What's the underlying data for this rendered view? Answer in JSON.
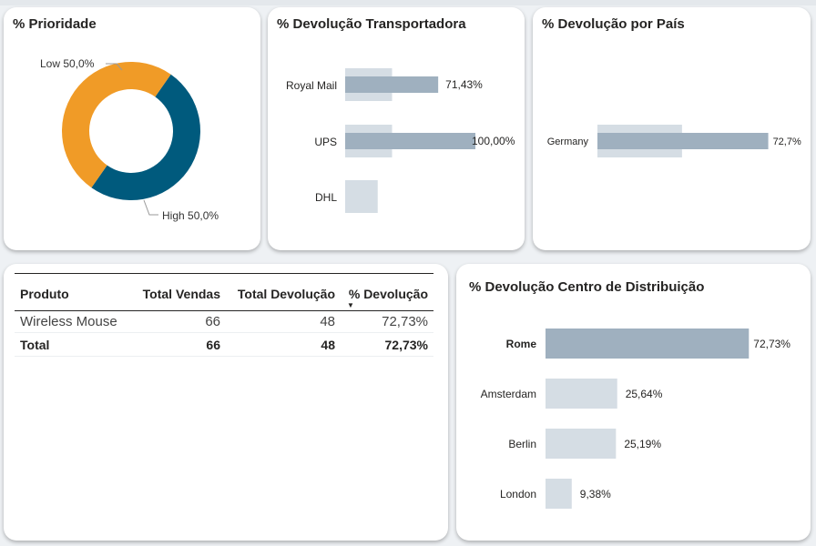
{
  "priority_card": {
    "title": "% Prioridade",
    "low_label": "Low 50,0%",
    "high_label": "High 50,0%"
  },
  "carrier_card": {
    "title": "% Devolução Transportadora"
  },
  "country_card": {
    "title": "% Devolução por País"
  },
  "dc_card": {
    "title": "% Devolução Centro de Distribuição"
  },
  "table": {
    "headers": [
      "Produto",
      "Total Vendas",
      "Total Devolução",
      "% Devolução"
    ],
    "sort_indicator": "▼",
    "rows": [
      {
        "produto": "Wireless Mouse",
        "vendas": "66",
        "devolucao": "48",
        "pct": "72,73%"
      }
    ],
    "total": {
      "produto": "Total",
      "vendas": "66",
      "devolucao": "48",
      "pct": "72,73%"
    }
  },
  "colors": {
    "orange": "#f09b27",
    "teal": "#005a7d",
    "bar_selected": "#9fb0bf",
    "bar_background": "#d5dde4"
  },
  "chart_data": [
    {
      "type": "pie",
      "title": "% Prioridade",
      "categories": [
        "Low",
        "High"
      ],
      "values": [
        50.0,
        50.0
      ],
      "data_labels": [
        "Low 50,0%",
        "High 50,0%"
      ],
      "colors": [
        "#f09b27",
        "#005a7d"
      ]
    },
    {
      "type": "bar",
      "orientation": "horizontal",
      "title": "% Devolução Transportadora",
      "categories": [
        "Royal Mail",
        "UPS",
        "DHL"
      ],
      "series": [
        {
          "values": [
            71.43,
            100.0,
            null
          ],
          "labels": [
            "71,43%",
            "100,00%",
            ""
          ]
        },
        {
          "values": [
            36,
            36,
            25
          ]
        }
      ],
      "xlim": [
        0,
        100
      ]
    },
    {
      "type": "bar",
      "orientation": "horizontal",
      "title": "% Devolução por País",
      "categories": [
        "Germany"
      ],
      "series": [
        {
          "values": [
            72.7
          ],
          "labels": [
            "72,7%"
          ]
        },
        {
          "values": [
            36
          ]
        }
      ],
      "xlim": [
        0,
        100
      ]
    },
    {
      "type": "bar",
      "orientation": "horizontal",
      "title": "% Devolução Centro de Distribuição",
      "categories": [
        "Rome",
        "Amsterdam",
        "Berlin",
        "London"
      ],
      "values": [
        72.73,
        25.64,
        25.19,
        9.38
      ],
      "labels": [
        "72,73%",
        "25,64%",
        "25,19%",
        "9,38%"
      ],
      "highlighted": "Rome",
      "xlim": [
        0,
        100
      ]
    }
  ]
}
